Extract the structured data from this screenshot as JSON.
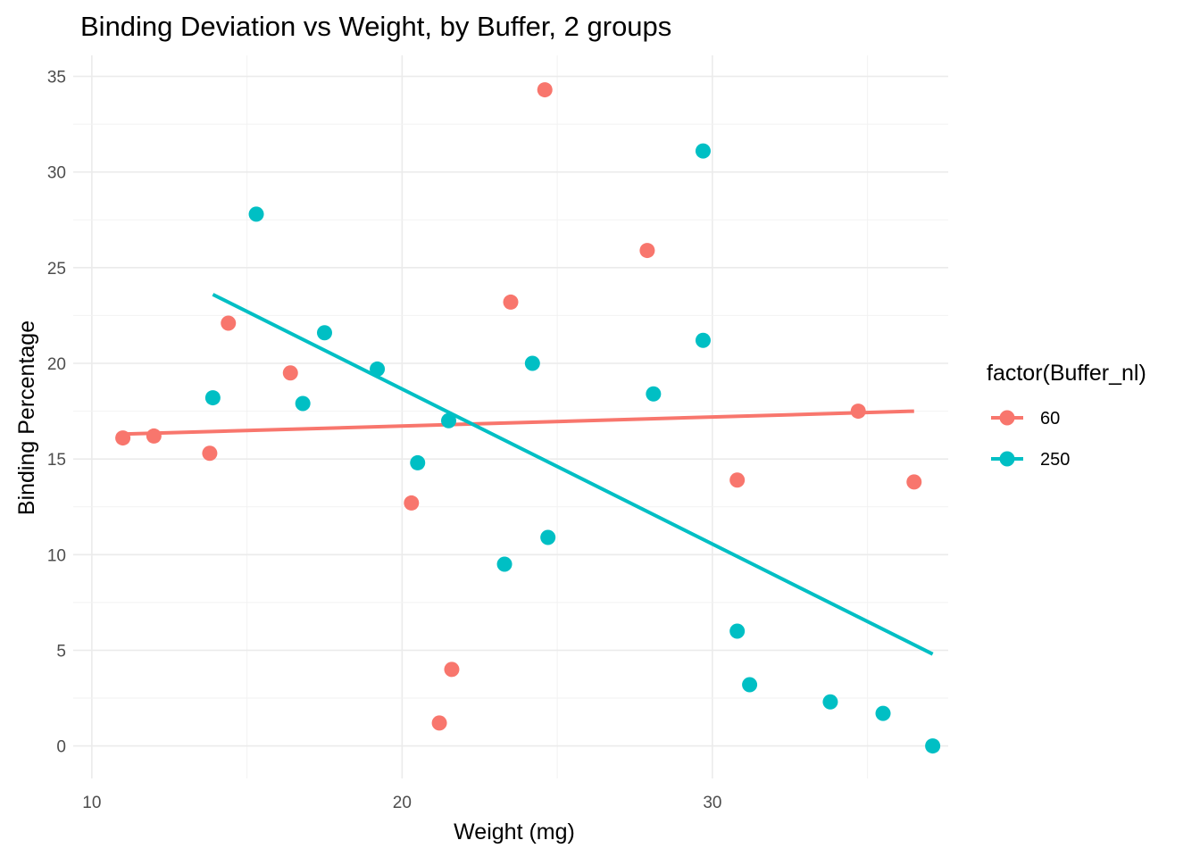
{
  "chart_data": {
    "type": "scatter",
    "title": "Binding Deviation vs Weight, by Buffer, 2 groups",
    "xlabel": "Weight (mg)",
    "ylabel": "Binding Percentage",
    "xlim": [
      9.4,
      37.6
    ],
    "ylim": [
      -1.7,
      36.1
    ],
    "x_ticks": [
      10,
      20,
      30
    ],
    "y_ticks": [
      0,
      5,
      10,
      15,
      20,
      25,
      30,
      35
    ],
    "grid": true,
    "legend": {
      "title": "factor(Buffer_nl)",
      "position": "right"
    },
    "series": [
      {
        "name": "60",
        "color": "#F8766D",
        "points": [
          {
            "x": 11.0,
            "y": 16.1
          },
          {
            "x": 12.0,
            "y": 16.2
          },
          {
            "x": 13.8,
            "y": 15.3
          },
          {
            "x": 14.4,
            "y": 22.1
          },
          {
            "x": 16.4,
            "y": 19.5
          },
          {
            "x": 20.3,
            "y": 12.7
          },
          {
            "x": 21.2,
            "y": 1.2
          },
          {
            "x": 21.6,
            "y": 4.0
          },
          {
            "x": 23.5,
            "y": 23.2
          },
          {
            "x": 24.6,
            "y": 34.3
          },
          {
            "x": 27.9,
            "y": 25.9
          },
          {
            "x": 30.8,
            "y": 13.9
          },
          {
            "x": 34.7,
            "y": 17.5
          },
          {
            "x": 36.5,
            "y": 13.8
          }
        ],
        "trend": {
          "x": [
            11.0,
            36.5
          ],
          "y": [
            16.3,
            17.5
          ]
        }
      },
      {
        "name": "250",
        "color": "#00BFC4",
        "points": [
          {
            "x": 13.9,
            "y": 18.2
          },
          {
            "x": 15.3,
            "y": 27.8
          },
          {
            "x": 16.8,
            "y": 17.9
          },
          {
            "x": 17.5,
            "y": 21.6
          },
          {
            "x": 19.2,
            "y": 19.7
          },
          {
            "x": 20.5,
            "y": 14.8
          },
          {
            "x": 21.5,
            "y": 17.0
          },
          {
            "x": 23.3,
            "y": 9.5
          },
          {
            "x": 24.2,
            "y": 20.0
          },
          {
            "x": 24.7,
            "y": 10.9
          },
          {
            "x": 28.1,
            "y": 18.4
          },
          {
            "x": 29.7,
            "y": 31.1
          },
          {
            "x": 29.7,
            "y": 21.2
          },
          {
            "x": 30.8,
            "y": 6.0
          },
          {
            "x": 31.2,
            "y": 3.2
          },
          {
            "x": 33.8,
            "y": 2.3
          },
          {
            "x": 35.5,
            "y": 1.7
          },
          {
            "x": 37.1,
            "y": 0.0
          }
        ],
        "trend": {
          "x": [
            13.9,
            37.1
          ],
          "y": [
            23.6,
            4.8
          ]
        }
      }
    ]
  }
}
